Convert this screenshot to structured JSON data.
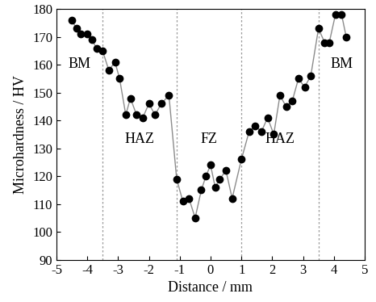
{
  "chart_data": {
    "type": "line",
    "x_label": "Distance / mm",
    "y_label": "Microhardness / HV",
    "x": [
      -4.5,
      -4.35,
      -4.2,
      -4.0,
      -3.85,
      -3.7,
      -3.5,
      -3.3,
      -3.1,
      -2.95,
      -2.75,
      -2.6,
      -2.4,
      -2.2,
      -2.0,
      -1.8,
      -1.6,
      -1.35,
      -1.1,
      -0.9,
      -0.7,
      -0.5,
      -0.3,
      -0.15,
      0.0,
      0.15,
      0.3,
      0.5,
      0.7,
      1.0,
      1.25,
      1.45,
      1.65,
      1.85,
      2.05,
      2.25,
      2.45,
      2.65,
      2.85,
      3.05,
      3.25,
      3.5,
      3.7,
      3.85,
      4.05,
      4.25,
      4.4
    ],
    "values": [
      176,
      173,
      171,
      171,
      169,
      166,
      165,
      158,
      161,
      155,
      142,
      148,
      142,
      141,
      146,
      142,
      146,
      149,
      119,
      111,
      112,
      105,
      115,
      120,
      124,
      116,
      119,
      122,
      112,
      126,
      136,
      138,
      136,
      141,
      135,
      149,
      145,
      147,
      155,
      152,
      156,
      173,
      168,
      168,
      178,
      178,
      170
    ],
    "color": "#000000",
    "marker": "o",
    "line_style": "solid",
    "regions": [
      {
        "label": "BM",
        "start": -5,
        "end": -3.5
      },
      {
        "label": "HAZ",
        "start": -3.5,
        "end": -1.1
      },
      {
        "label": "FZ",
        "start": -1.1,
        "end": 1.0
      },
      {
        "label": "HAZ",
        "start": 1.0,
        "end": 3.5
      },
      {
        "label": "BM",
        "start": 3.5,
        "end": 5
      }
    ],
    "xlim": [
      -5,
      5
    ],
    "xticks": [
      -5,
      -4,
      -3,
      -2,
      -1,
      0,
      1,
      2,
      3,
      4,
      5
    ],
    "ylim": [
      90,
      180
    ],
    "yticks": [
      90,
      100,
      110,
      120,
      130,
      140,
      150,
      160,
      170,
      180
    ],
    "grid": false
  }
}
